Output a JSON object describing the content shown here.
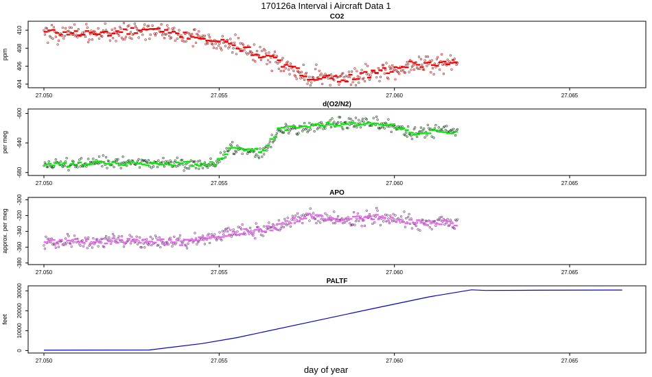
{
  "figure": {
    "title": "170126a   Interval i Aircraft Data 1",
    "xlabel": "day of year"
  },
  "chart_data": [
    {
      "type": "scatter",
      "title": "CO2",
      "ylabel": "ppm",
      "xlim": [
        27.05,
        27.067
      ],
      "ylim": [
        403.6,
        411.0
      ],
      "yticks": [
        404,
        406,
        408,
        410
      ],
      "xticks": [
        27.05,
        27.055,
        27.06,
        27.065
      ],
      "tick_labels": [
        "27.050",
        "27.055",
        "27.060",
        "27.065"
      ],
      "colors": {
        "raw": "#aa1111",
        "avg": "#ff0000"
      },
      "x_end": 27.0618,
      "anchors": [
        [
          27.05,
          409.8
        ],
        [
          27.0515,
          409.6
        ],
        [
          27.053,
          410.0
        ],
        [
          27.0545,
          409.2
        ],
        [
          27.0555,
          408.2
        ],
        [
          27.0565,
          406.8
        ],
        [
          27.0575,
          404.9
        ],
        [
          27.0585,
          404.6
        ],
        [
          27.0595,
          405.2
        ],
        [
          27.0605,
          406.2
        ],
        [
          27.0618,
          406.3
        ]
      ],
      "noise": 0.9
    },
    {
      "type": "scatter",
      "title": "d(O2/N2)",
      "ylabel": "per meg",
      "xlim": [
        27.05,
        27.067
      ],
      "ylim": [
        -684,
        -594
      ],
      "yticks": [
        -680,
        -640,
        -600
      ],
      "xticks": [
        27.05,
        27.055,
        27.06,
        27.065
      ],
      "tick_labels": [
        "27.050",
        "27.055",
        "27.060",
        "27.065"
      ],
      "colors": {
        "raw": "#114411",
        "avg": "#00ee00"
      },
      "x_end": 27.0618,
      "anchors": [
        [
          27.05,
          -670
        ],
        [
          27.052,
          -667
        ],
        [
          27.054,
          -668
        ],
        [
          27.0549,
          -669
        ],
        [
          27.0553,
          -647
        ],
        [
          27.0563,
          -652
        ],
        [
          27.0567,
          -622
        ],
        [
          27.0585,
          -614
        ],
        [
          27.0595,
          -612
        ],
        [
          27.0605,
          -626
        ],
        [
          27.0618,
          -624
        ]
      ],
      "noise": 7
    },
    {
      "type": "scatter",
      "title": "APO",
      "ylabel": "approx. per meg",
      "xlim": [
        27.05,
        27.067
      ],
      "ylim": [
        -382,
        -297
      ],
      "yticks": [
        -380,
        -360,
        -340,
        -320,
        -300
      ],
      "xticks": [
        27.05,
        27.055,
        27.06,
        27.065
      ],
      "tick_labels": [
        "27.050",
        "27.055",
        "27.060",
        "27.065"
      ],
      "colors": {
        "raw": "#7a2a8a",
        "avg": "#ee66ee"
      },
      "x_end": 27.0618,
      "anchors": [
        [
          27.05,
          -354
        ],
        [
          27.052,
          -352
        ],
        [
          27.054,
          -354
        ],
        [
          27.0555,
          -342
        ],
        [
          27.0565,
          -336
        ],
        [
          27.0575,
          -320
        ],
        [
          27.0585,
          -326
        ],
        [
          27.0595,
          -322
        ],
        [
          27.0605,
          -328
        ],
        [
          27.0618,
          -330
        ]
      ],
      "noise": 8
    },
    {
      "type": "line",
      "title": "PALTF",
      "ylabel": "feet",
      "xlim": [
        27.05,
        27.067
      ],
      "ylim": [
        -1200,
        32500
      ],
      "yticks": [
        0,
        10000,
        20000,
        30000
      ],
      "xticks": [
        27.05,
        27.055,
        27.06,
        27.065
      ],
      "tick_labels": [
        "27.050",
        "27.055",
        "27.060",
        "27.065"
      ],
      "colors": {
        "line": "#0000cc"
      },
      "x": [
        27.05,
        27.053,
        27.0545,
        27.0555,
        27.0575,
        27.0595,
        27.061,
        27.0622,
        27.0626,
        27.064,
        27.0665
      ],
      "y": [
        200,
        300,
        3500,
        6500,
        14000,
        21500,
        27000,
        30500,
        30200,
        30300,
        30400
      ]
    }
  ]
}
